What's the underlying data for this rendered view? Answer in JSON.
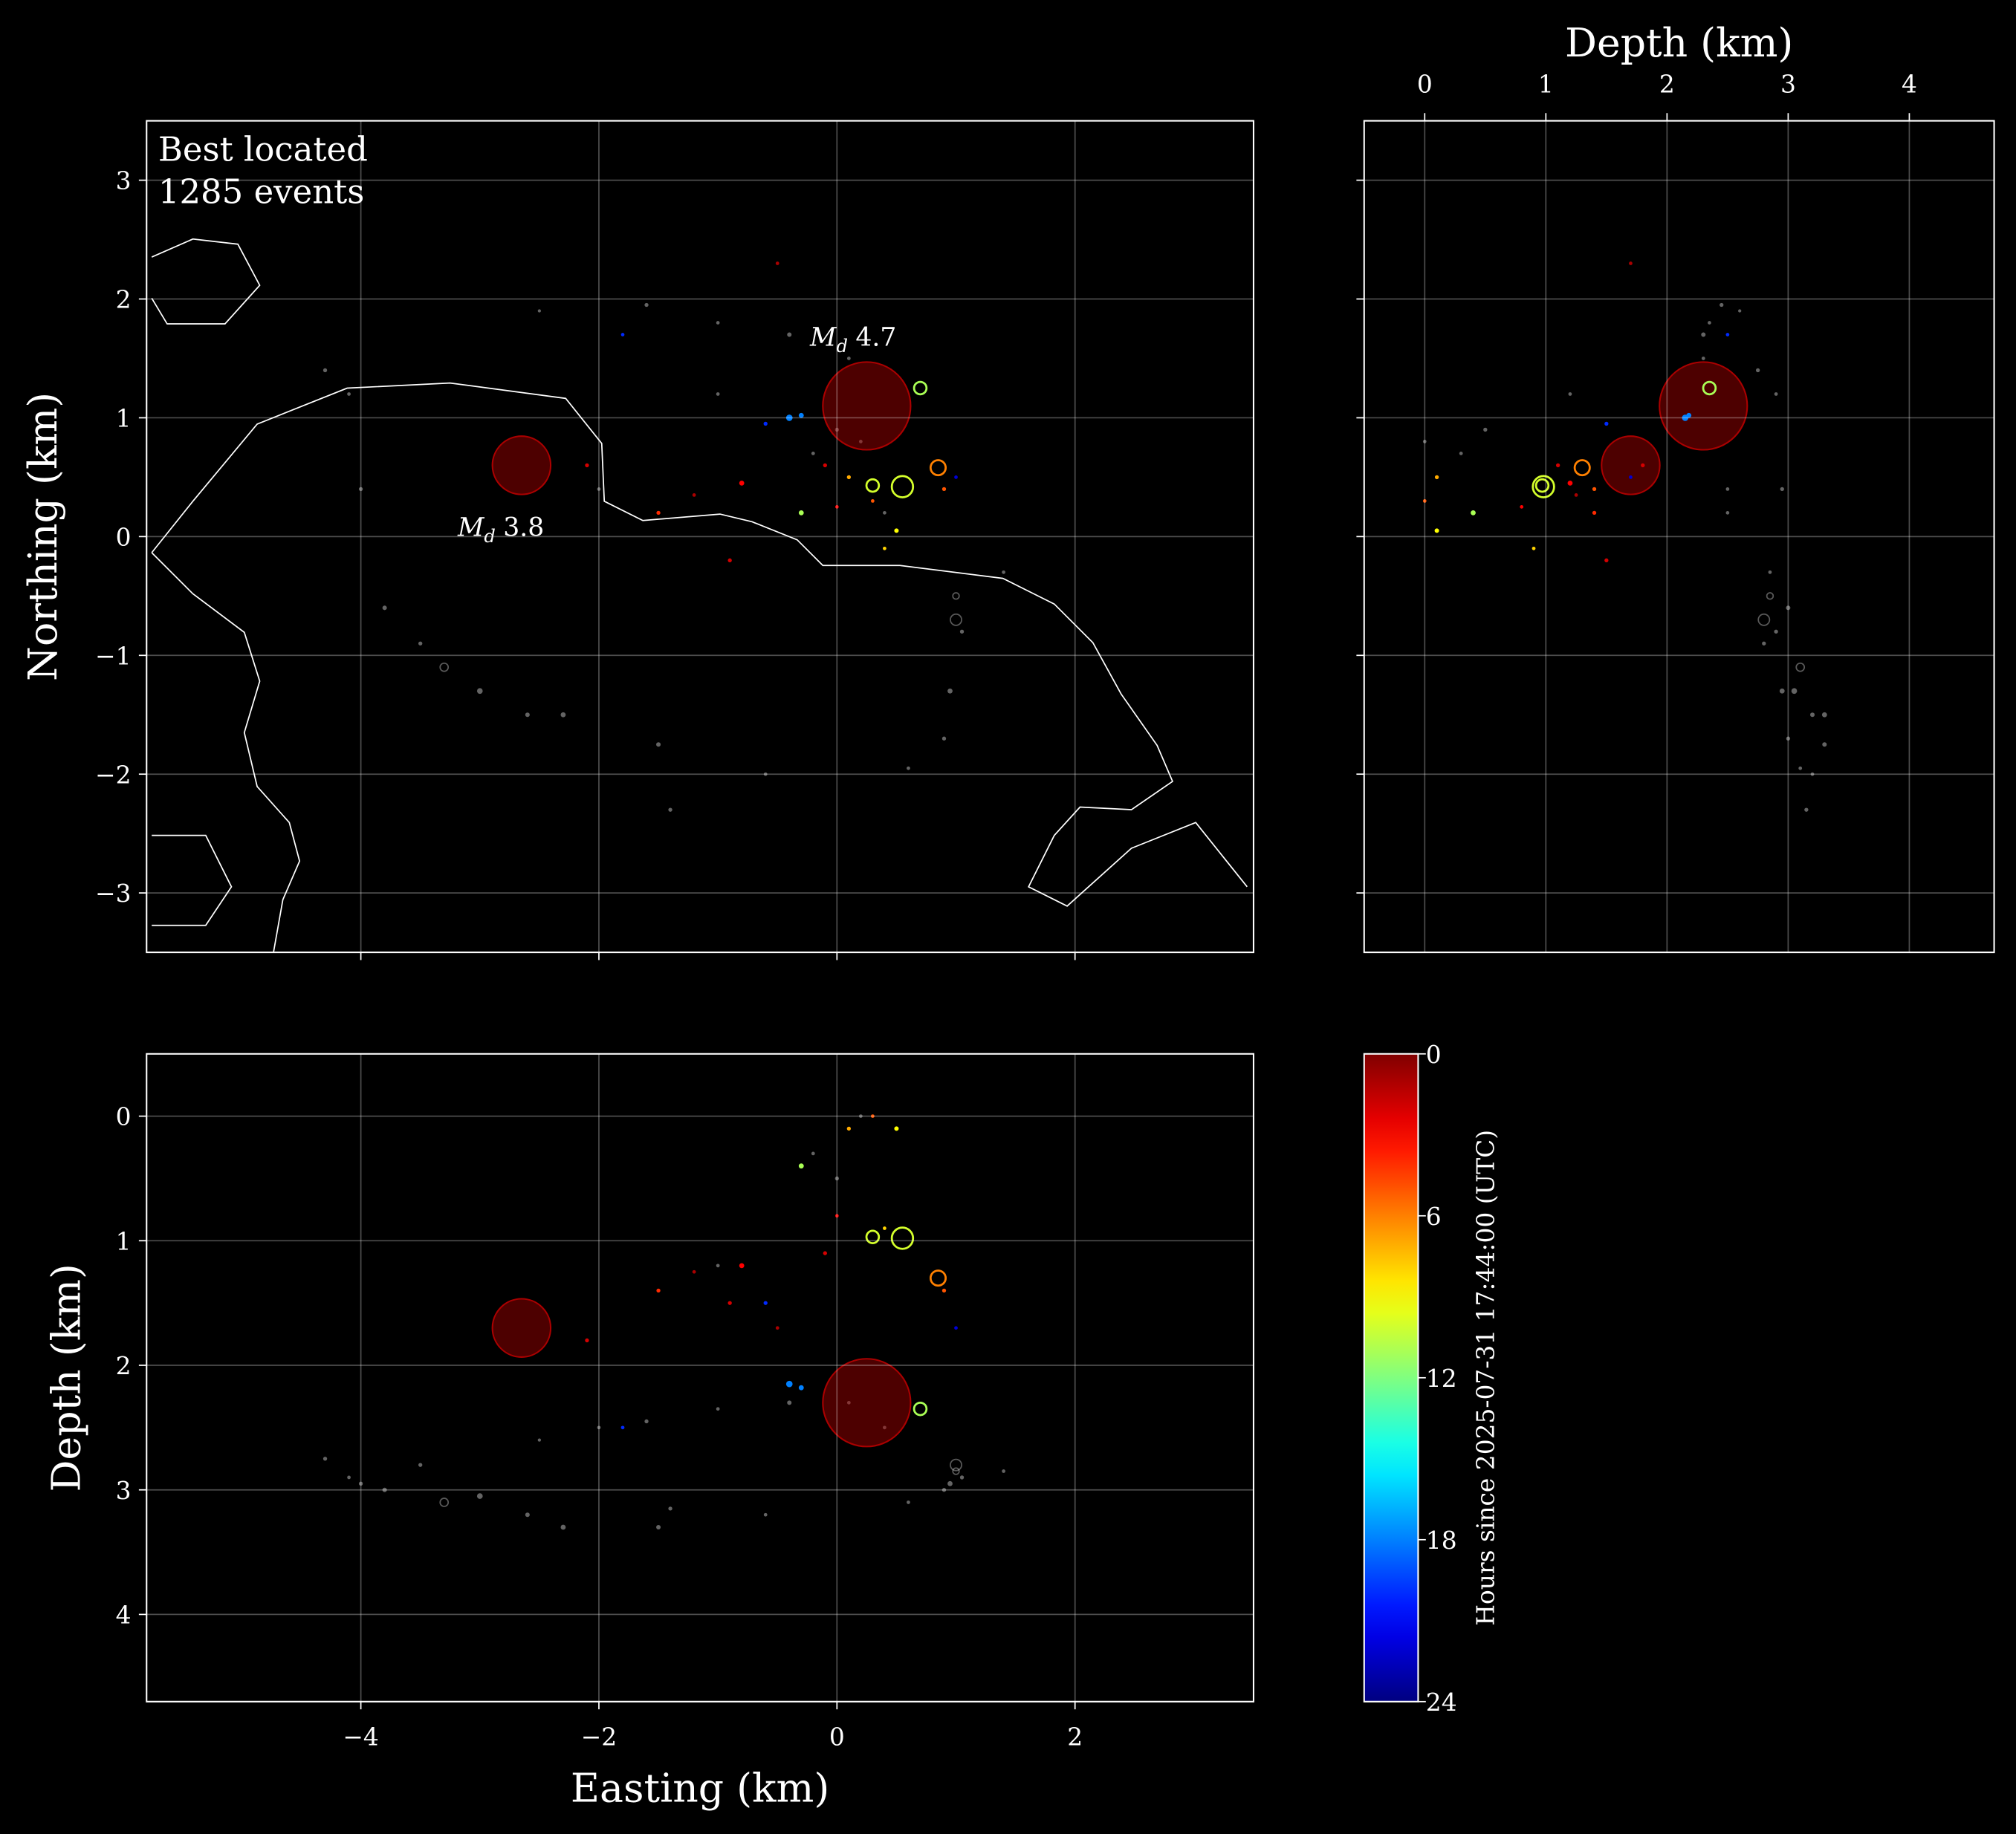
{
  "chart_data": [
    {
      "type": "scatter",
      "ylabel": "Northing (km)",
      "text": [
        "Best located",
        "1285 events"
      ],
      "annotations": [
        {
          "symbol": "M",
          "subscript": "d",
          "value": 4.7
        },
        {
          "symbol": "M",
          "subscript": "d",
          "value": 3.8
        }
      ],
      "xlim": [
        -5.8,
        3.5
      ],
      "ylim": [
        -3.5,
        3.5
      ],
      "xticks": [
        {
          "value": -4,
          "label": "−4"
        },
        {
          "value": -2,
          "label": "−2"
        },
        0,
        2
      ],
      "yticks": [
        {
          "value": -3,
          "label": "−3"
        },
        {
          "value": -2,
          "label": "−2"
        },
        {
          "value": -1,
          "label": "−1"
        },
        0,
        1,
        2,
        3
      ],
      "show_xtick_labels": false,
      "grid": true,
      "colormap": "jet",
      "series": [
        {
          "color": "#c8c8c8",
          "x": [
            -1.6,
            -1.0,
            -0.4,
            0.1,
            -2.5,
            1.0,
            1.05,
            0.95,
            0.9,
            -4.1,
            -4.0,
            -3.8,
            -3.3,
            -3.0,
            -2.6,
            -2.3,
            -1.4,
            -0.6,
            0.6,
            1.0,
            -1.5,
            -3.5,
            -1.0,
            0.0,
            0.2,
            -0.2,
            1.4,
            -4.3,
            -2.0,
            0.4
          ],
          "y": [
            1.95,
            1.8,
            1.7,
            1.5,
            1.9,
            -0.5,
            -0.8,
            -1.3,
            -1.7,
            1.2,
            0.4,
            -0.6,
            -1.1,
            -1.3,
            -1.5,
            -1.5,
            -2.3,
            -2.0,
            -1.95,
            -0.7,
            -1.75,
            -0.9,
            1.2,
            0.9,
            0.8,
            0.7,
            -0.3,
            1.4,
            0.4,
            0.2
          ],
          "size": [
            0.6,
            0.5,
            0.7,
            0.5,
            0.4,
            1.0,
            0.6,
            0.8,
            0.6,
            0.5,
            0.6,
            0.7,
            1.2,
            0.9,
            0.7,
            0.8,
            0.6,
            0.5,
            0.5,
            1.5,
            0.7,
            0.6,
            0.5,
            0.6,
            0.5,
            0.5,
            0.5,
            0.6,
            0.5,
            0.5
          ]
        },
        {
          "x": [
            0.25,
            -2.65,
            0.55,
            0.3,
            0.85,
            0.7,
            -0.4,
            -0.3,
            -0.8,
            -1.5,
            -0.9,
            0.1,
            0.5,
            -0.3,
            -0.1,
            -1.2,
            0.4,
            -0.6,
            0.9,
            -2.1,
            -0.5,
            0.3,
            1.0,
            -1.8,
            0.0
          ],
          "y": [
            1.1,
            0.6,
            0.42,
            0.43,
            0.58,
            1.25,
            1.0,
            1.02,
            0.45,
            0.2,
            -0.2,
            0.5,
            0.05,
            0.2,
            0.6,
            0.35,
            -0.1,
            0.95,
            0.4,
            0.6,
            2.3,
            0.3,
            0.5,
            1.7,
            0.25
          ],
          "size": [
            4.7,
            3.8,
            2.2,
            1.6,
            1.8,
            1.6,
            1.0,
            0.8,
            0.8,
            0.6,
            0.6,
            0.6,
            0.7,
            0.8,
            0.6,
            0.5,
            0.5,
            0.6,
            0.6,
            0.6,
            0.5,
            0.5,
            0.5,
            0.5,
            0.5
          ],
          "hours": [
            1,
            1,
            10,
            10,
            6,
            11,
            18,
            18,
            3,
            4,
            2,
            7,
            9,
            11,
            2,
            1,
            8,
            20,
            5,
            2,
            1,
            5,
            22,
            20,
            3
          ]
        }
      ]
    },
    {
      "type": "scatter",
      "xlabel": "Depth (km)",
      "xaxis_position": "top",
      "xlim": [
        -0.5,
        4.7
      ],
      "ylim": [
        -3.5,
        3.5
      ],
      "xticks": [
        0,
        1,
        2,
        3,
        4
      ],
      "yticks": [
        {
          "value": -3,
          "label": "−3"
        },
        {
          "value": -2,
          "label": "−2"
        },
        {
          "value": -1,
          "label": "−1"
        },
        0,
        1,
        2,
        3
      ],
      "show_ytick_labels": false,
      "grid": true,
      "colormap": "jet",
      "series": [
        {
          "color": "#c8c8c8",
          "x": [
            2.45,
            2.35,
            2.3,
            2.3,
            2.6,
            2.85,
            2.9,
            2.95,
            3.0,
            2.9,
            2.95,
            3.0,
            3.1,
            3.05,
            3.2,
            3.3,
            3.15,
            3.2,
            3.1,
            2.8,
            3.3,
            2.8,
            1.2,
            0.5,
            0.0,
            0.3,
            2.85,
            2.75,
            2.5,
            2.5
          ],
          "y": [
            1.95,
            1.8,
            1.7,
            1.5,
            1.9,
            -0.5,
            -0.8,
            -1.3,
            -1.7,
            1.2,
            0.4,
            -0.6,
            -1.1,
            -1.3,
            -1.5,
            -1.5,
            -2.3,
            -2.0,
            -1.95,
            -0.7,
            -1.75,
            -0.9,
            1.2,
            0.9,
            0.8,
            0.7,
            -0.3,
            1.4,
            0.4,
            0.2
          ],
          "size": [
            0.6,
            0.5,
            0.7,
            0.5,
            0.4,
            1.0,
            0.6,
            0.8,
            0.6,
            0.5,
            0.6,
            0.7,
            1.2,
            0.9,
            0.7,
            0.8,
            0.6,
            0.5,
            0.5,
            1.5,
            0.7,
            0.6,
            0.5,
            0.6,
            0.5,
            0.5,
            0.5,
            0.6,
            0.5,
            0.5
          ]
        },
        {
          "x": [
            2.3,
            1.7,
            0.98,
            0.97,
            1.3,
            2.35,
            2.15,
            2.18,
            1.2,
            1.4,
            1.5,
            0.1,
            0.1,
            0.4,
            1.1,
            1.25,
            0.9,
            1.5,
            1.4,
            1.8,
            1.7,
            0.0,
            1.7,
            2.5,
            0.8
          ],
          "y": [
            1.1,
            0.6,
            0.42,
            0.43,
            0.58,
            1.25,
            1.0,
            1.02,
            0.45,
            0.2,
            -0.2,
            0.5,
            0.05,
            0.2,
            0.6,
            0.35,
            -0.1,
            0.95,
            0.4,
            0.6,
            2.3,
            0.3,
            0.5,
            1.7,
            0.25
          ],
          "size": [
            4.7,
            3.8,
            2.2,
            1.6,
            1.8,
            1.6,
            1.0,
            0.8,
            0.8,
            0.6,
            0.6,
            0.6,
            0.7,
            0.8,
            0.6,
            0.5,
            0.5,
            0.6,
            0.6,
            0.6,
            0.5,
            0.5,
            0.5,
            0.5,
            0.5
          ],
          "hours": [
            1,
            1,
            10,
            10,
            6,
            11,
            18,
            18,
            3,
            4,
            2,
            7,
            9,
            11,
            2,
            1,
            8,
            20,
            5,
            2,
            1,
            5,
            22,
            20,
            3
          ]
        }
      ]
    },
    {
      "type": "scatter",
      "xlabel": "Easting (km)",
      "ylabel": "Depth (km)",
      "invert_y": true,
      "xlim": [
        -5.8,
        3.5
      ],
      "ylim": [
        -0.5,
        4.7
      ],
      "xticks": [
        {
          "value": -4,
          "label": "−4"
        },
        {
          "value": -2,
          "label": "−2"
        },
        0,
        2
      ],
      "yticks": [
        0,
        1,
        2,
        3,
        4
      ],
      "grid": true,
      "colormap": "jet",
      "series": [
        {
          "color": "#c8c8c8",
          "x": [
            -1.6,
            -1.0,
            -0.4,
            0.1,
            -2.5,
            1.0,
            1.05,
            0.95,
            0.9,
            -4.1,
            -4.0,
            -3.8,
            -3.3,
            -3.0,
            -2.6,
            -2.3,
            -1.4,
            -0.6,
            0.6,
            1.0,
            -1.5,
            -3.5,
            -1.0,
            0.0,
            0.2,
            -0.2,
            1.4,
            -4.3,
            -2.0,
            0.4
          ],
          "y": [
            2.45,
            2.35,
            2.3,
            2.3,
            2.6,
            2.85,
            2.9,
            2.95,
            3.0,
            2.9,
            2.95,
            3.0,
            3.1,
            3.05,
            3.2,
            3.3,
            3.15,
            3.2,
            3.1,
            2.8,
            3.3,
            2.8,
            1.2,
            0.5,
            0.0,
            0.3,
            2.85,
            2.75,
            2.5,
            2.5
          ],
          "size": [
            0.6,
            0.5,
            0.7,
            0.5,
            0.4,
            1.0,
            0.6,
            0.8,
            0.6,
            0.5,
            0.6,
            0.7,
            1.2,
            0.9,
            0.7,
            0.8,
            0.6,
            0.5,
            0.5,
            1.5,
            0.7,
            0.6,
            0.5,
            0.6,
            0.5,
            0.5,
            0.5,
            0.6,
            0.5,
            0.5
          ]
        },
        {
          "x": [
            0.25,
            -2.65,
            0.55,
            0.3,
            0.85,
            0.7,
            -0.4,
            -0.3,
            -0.8,
            -1.5,
            -0.9,
            0.1,
            0.5,
            -0.3,
            -0.1,
            -1.2,
            0.4,
            -0.6,
            0.9,
            -2.1,
            -0.5,
            0.3,
            1.0,
            -1.8,
            0.0
          ],
          "y": [
            2.3,
            1.7,
            0.98,
            0.97,
            1.3,
            2.35,
            2.15,
            2.18,
            1.2,
            1.4,
            1.5,
            0.1,
            0.1,
            0.4,
            1.1,
            1.25,
            0.9,
            1.5,
            1.4,
            1.8,
            1.7,
            0.0,
            1.7,
            2.5,
            0.8
          ],
          "size": [
            4.7,
            3.8,
            2.2,
            1.6,
            1.8,
            1.6,
            1.0,
            0.8,
            0.8,
            0.6,
            0.6,
            0.6,
            0.7,
            0.8,
            0.6,
            0.5,
            0.5,
            0.6,
            0.6,
            0.6,
            0.5,
            0.5,
            0.5,
            0.5,
            0.5
          ],
          "hours": [
            1,
            1,
            10,
            10,
            6,
            11,
            18,
            18,
            3,
            4,
            2,
            7,
            9,
            11,
            2,
            1,
            8,
            20,
            5,
            2,
            1,
            5,
            22,
            20,
            3
          ]
        }
      ]
    },
    {
      "type": "colorbar",
      "label": "Hours since 2025-07-31 17:44:00 (UTC)",
      "clim": [
        0,
        24
      ],
      "ticks": [
        0,
        6,
        12,
        18,
        24
      ],
      "colormap": "jet",
      "invert": true
    }
  ]
}
